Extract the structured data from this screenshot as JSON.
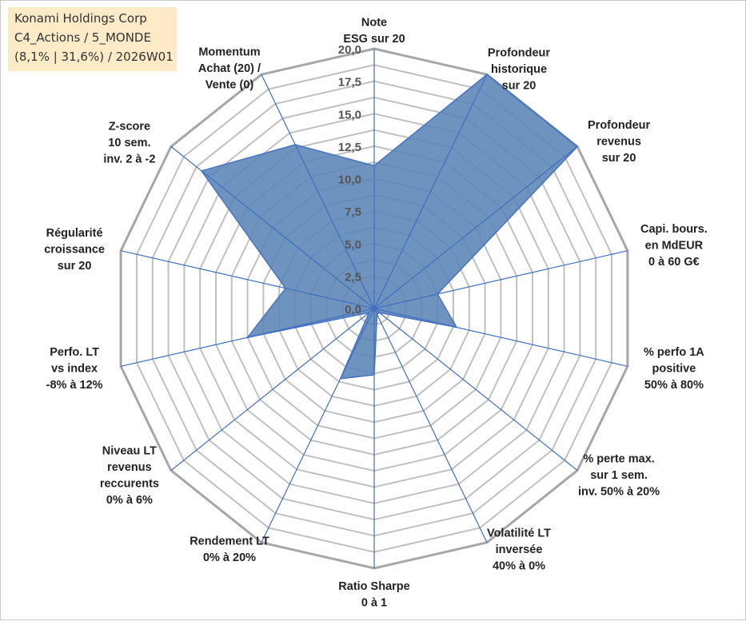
{
  "title_box": {
    "line1": "Konami Holdings Corp",
    "line2": "C4_Actions / 5_MONDE",
    "line3": "(8,1% | 31,6%) / 2026W01"
  },
  "chart_data": {
    "type": "radar",
    "title": "Konami Holdings Corp",
    "range": [
      0,
      20
    ],
    "ticks": [
      "0,0",
      "2,5",
      "5,0",
      "7,5",
      "10,0",
      "12,5",
      "15,0",
      "17,5",
      "20,0"
    ],
    "tick_values": [
      0,
      2.5,
      5,
      7.5,
      10,
      12.5,
      15,
      17.5,
      20
    ],
    "axes": [
      {
        "label": [
          "Note",
          "ESG sur 20"
        ],
        "value": 11
      },
      {
        "label": [
          "Profondeur",
          "historique",
          "sur 20"
        ],
        "value": 20
      },
      {
        "label": [
          "Profondeur",
          "revenus",
          "sur 20"
        ],
        "value": 20
      },
      {
        "label": [
          "Capi. bours.",
          "en MdEUR",
          "0 à 60 G€"
        ],
        "value": 5
      },
      {
        "label": [
          "% perfo 1A",
          "positive",
          "50% à 80%"
        ],
        "value": 6.5
      },
      {
        "label": [
          "% perte max.",
          "sur 1 sem.",
          "inv. 50% à 20%"
        ],
        "value": 0.5
      },
      {
        "label": [
          "Volatilité LT",
          "inversée",
          "40% à 0%"
        ],
        "value": 0.5
      },
      {
        "label": [
          "Ratio Sharpe",
          "0 à 1"
        ],
        "value": 5.1
      },
      {
        "label": [
          "Rendement LT",
          "0% à 20%"
        ],
        "value": 6
      },
      {
        "label": [
          "Niveau LT",
          "revenus",
          "reccurents",
          "0% à 6%"
        ],
        "value": 0.5
      },
      {
        "label": [
          "Perfo. LT",
          "vs index",
          "-8% à 12%"
        ],
        "value": 10
      },
      {
        "label": [
          "Régularité",
          "croissance",
          "sur 20"
        ],
        "value": 7
      },
      {
        "label": [
          "Z-score",
          "10 sem.",
          "inv. 2 à -2"
        ],
        "value": 17
      },
      {
        "label": [
          "Momentum",
          "Achat (20) /",
          "Vente (0)"
        ],
        "value": 14
      }
    ],
    "series": [
      {
        "name": "Konami Holdings Corp"
      }
    ],
    "colors": {
      "fill": "#5b84b6",
      "stroke": "#4472c4",
      "spoke": "#3f6fc0",
      "grid": "#c0c0c0",
      "outer_grid": "#a6a6a6"
    }
  }
}
